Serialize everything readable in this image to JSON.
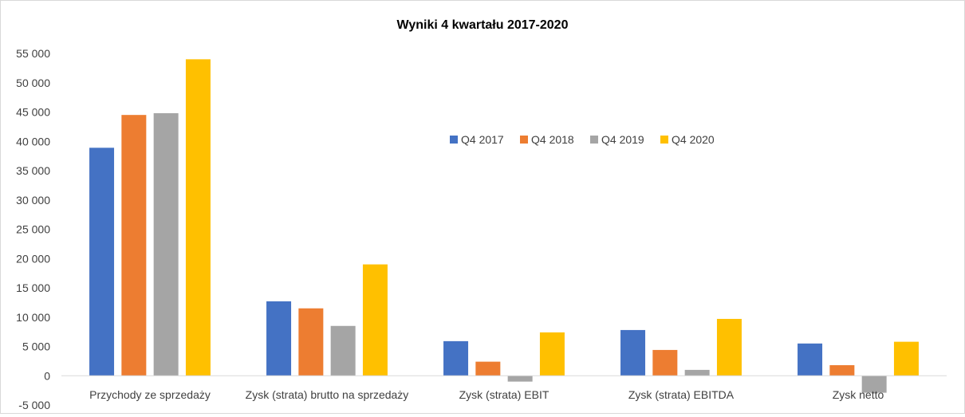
{
  "chart_data": {
    "type": "bar",
    "title": "Wyniki 4 kwartału 2017-2020",
    "xlabel": "",
    "ylabel": "",
    "ylim": [
      -5000,
      55000
    ],
    "yticks": [
      -5000,
      0,
      5000,
      10000,
      15000,
      20000,
      25000,
      30000,
      35000,
      40000,
      45000,
      50000,
      55000
    ],
    "ytick_labels": [
      "-5 000",
      "0",
      "5 000",
      "10 000",
      "15 000",
      "20 000",
      "25 000",
      "30 000",
      "35 000",
      "40 000",
      "45 000",
      "50 000",
      "55 000"
    ],
    "categories": [
      "Przychody ze sprzedaży",
      "Zysk (strata) brutto na sprzedaży",
      "Zysk (strata) EBIT",
      "Zysk (strata) EBITDA",
      "Zysk netto"
    ],
    "series": [
      {
        "name": "Q4 2017",
        "color": "#4472C4",
        "values": [
          38900,
          12700,
          5900,
          7800,
          5500
        ]
      },
      {
        "name": "Q4 2018",
        "color": "#ED7D31",
        "values": [
          44500,
          11500,
          2400,
          4400,
          1800
        ]
      },
      {
        "name": "Q4 2019",
        "color": "#A5A5A5",
        "values": [
          44800,
          8500,
          -1000,
          1000,
          -2900
        ]
      },
      {
        "name": "Q4 2020",
        "color": "#FFC000",
        "values": [
          54000,
          19000,
          7400,
          9700,
          5800
        ]
      }
    ],
    "grid": false,
    "legend": "inside-top-center"
  }
}
